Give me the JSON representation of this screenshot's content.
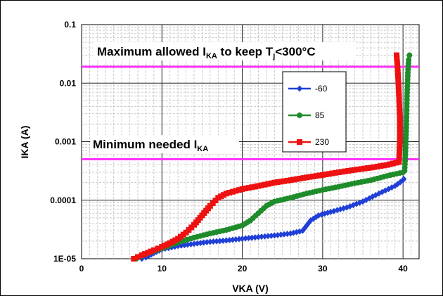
{
  "chart_data": {
    "type": "line",
    "xlabel": "VKA (V)",
    "ylabel": "IKA (A)",
    "xlim": [
      0,
      42
    ],
    "ylim": [
      1e-05,
      0.1
    ],
    "yscale": "log",
    "x_ticks": [
      "0",
      "10",
      "20",
      "30",
      "40"
    ],
    "y_ticks": [
      "1E-05",
      "0.0001",
      "0.001",
      "0.01",
      "0.1"
    ],
    "grid": true,
    "legend_position": "right-inside",
    "annotations": {
      "max": {
        "text": "Maximum allowed I",
        "sub": "KA",
        "text2": " to keep T",
        "sub2": "j",
        "text3": "<300°C",
        "y": 0.019
      },
      "min": {
        "text": "Minimum needed I",
        "sub": "KA",
        "y": 0.0005
      }
    },
    "hline_color": "#ff33ff",
    "series": [
      {
        "name": "-60",
        "color": "#1f3fd6",
        "marker": "diamond",
        "points": [
          [
            7.5,
            1e-05
          ],
          [
            8.0,
            1.05e-05
          ],
          [
            9.0,
            1.25e-05
          ],
          [
            10.0,
            1.45e-05
          ],
          [
            12.0,
            1.65e-05
          ],
          [
            14.0,
            1.8e-05
          ],
          [
            16.0,
            1.95e-05
          ],
          [
            18.0,
            2.05e-05
          ],
          [
            20.0,
            2.2e-05
          ],
          [
            22.0,
            2.35e-05
          ],
          [
            24.0,
            2.5e-05
          ],
          [
            26.0,
            2.7e-05
          ],
          [
            27.5,
            3e-05
          ],
          [
            28.5,
            4.5e-05
          ],
          [
            29.5,
            5.5e-05
          ],
          [
            31.0,
            6.3e-05
          ],
          [
            33.0,
            7.5e-05
          ],
          [
            35.0,
            9.5e-05
          ],
          [
            37.0,
            0.00013
          ],
          [
            39.0,
            0.000175
          ],
          [
            40.0,
            0.00022
          ],
          [
            40.1,
            0.00023
          ]
        ]
      },
      {
        "name": "85",
        "color": "#1e8c2a",
        "marker": "circle",
        "points": [
          [
            6.8,
            1e-05
          ],
          [
            8.0,
            1.2e-05
          ],
          [
            10.0,
            1.5e-05
          ],
          [
            12.0,
            1.9e-05
          ],
          [
            14.0,
            2.3e-05
          ],
          [
            16.0,
            2.7e-05
          ],
          [
            18.0,
            3.1e-05
          ],
          [
            20.0,
            3.7e-05
          ],
          [
            21.0,
            4.5e-05
          ],
          [
            22.0,
            6e-05
          ],
          [
            23.0,
            8e-05
          ],
          [
            24.0,
            9.5e-05
          ],
          [
            26.0,
            0.00011
          ],
          [
            28.0,
            0.00013
          ],
          [
            30.0,
            0.00015
          ],
          [
            32.0,
            0.00017
          ],
          [
            34.0,
            0.000195
          ],
          [
            36.0,
            0.00022
          ],
          [
            38.0,
            0.00026
          ],
          [
            40.0,
            0.0003
          ],
          [
            40.2,
            0.00032
          ],
          [
            40.3,
            0.0006
          ],
          [
            40.4,
            0.0015
          ],
          [
            40.5,
            0.006
          ],
          [
            40.6,
            0.015
          ],
          [
            40.7,
            0.025
          ],
          [
            40.8,
            0.03
          ]
        ]
      },
      {
        "name": "230",
        "color": "#ee1111",
        "marker": "square",
        "points": [
          [
            6.5,
            1e-05
          ],
          [
            7.5,
            1.15e-05
          ],
          [
            9.0,
            1.4e-05
          ],
          [
            10.0,
            1.6e-05
          ],
          [
            11.0,
            1.85e-05
          ],
          [
            12.0,
            2.2e-05
          ],
          [
            13.0,
            2.8e-05
          ],
          [
            14.0,
            3.8e-05
          ],
          [
            15.0,
            5.5e-05
          ],
          [
            16.0,
            8e-05
          ],
          [
            17.0,
            0.00011
          ],
          [
            18.0,
            0.00013
          ],
          [
            20.0,
            0.000155
          ],
          [
            22.0,
            0.000175
          ],
          [
            24.0,
            0.0002
          ],
          [
            26.0,
            0.00022
          ],
          [
            28.0,
            0.000245
          ],
          [
            30.0,
            0.00027
          ],
          [
            32.0,
            0.0003
          ],
          [
            34.0,
            0.00033
          ],
          [
            36.0,
            0.00036
          ],
          [
            38.0,
            0.0004
          ],
          [
            39.5,
            0.00045
          ],
          [
            39.6,
            0.001
          ],
          [
            39.6,
            0.0025
          ],
          [
            39.5,
            0.006
          ],
          [
            39.4,
            0.012
          ],
          [
            39.3,
            0.02
          ],
          [
            39.2,
            0.03
          ]
        ]
      }
    ]
  }
}
